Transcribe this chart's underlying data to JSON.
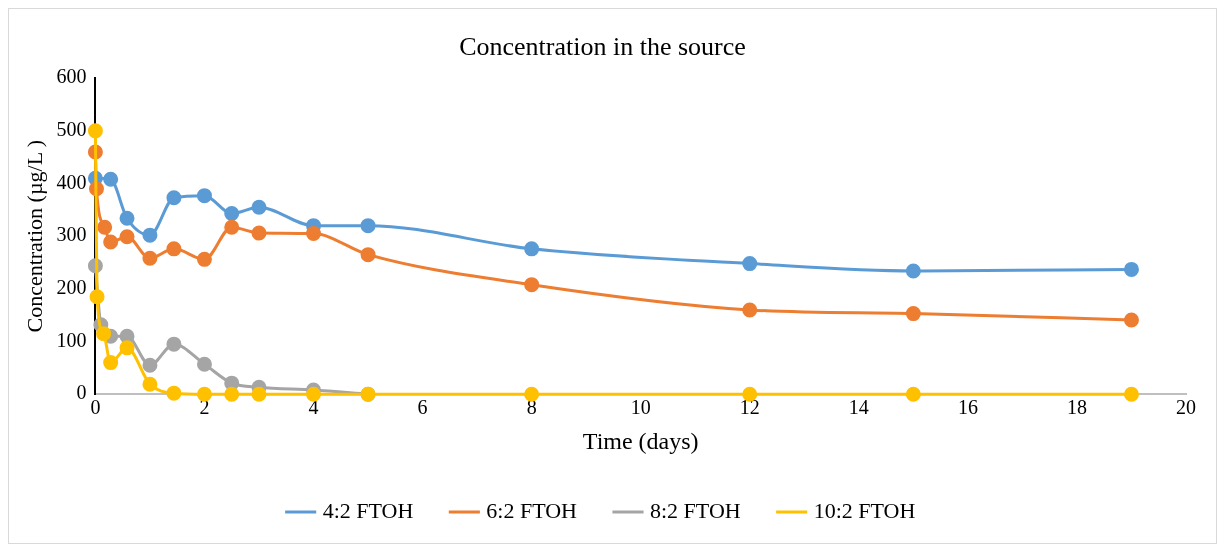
{
  "chart_data": {
    "type": "line",
    "title": "Concentration in the source",
    "xlabel": "Time (days)",
    "ylabel": "Concentration (µg/L )",
    "xlim": [
      0,
      20
    ],
    "xticks": [
      0,
      2,
      4,
      6,
      8,
      10,
      12,
      14,
      16,
      18,
      20
    ],
    "ylim": [
      0,
      600
    ],
    "yticks": [
      0,
      100,
      200,
      300,
      400,
      500,
      600
    ],
    "grid": false,
    "legend": "bottom",
    "marker": "circle",
    "line_style": "solid",
    "series": [
      {
        "name": "4:2 FTOH",
        "color": "#5b9bd5",
        "x": [
          0,
          0.28,
          0.58,
          1,
          1.44,
          2,
          2.5,
          3,
          4,
          5,
          8,
          12,
          15,
          19
        ],
        "values": [
          410,
          408,
          334,
          302,
          373,
          377,
          343,
          355,
          320,
          320,
          276,
          248,
          234,
          237
        ]
      },
      {
        "name": "6:2 FTOH",
        "color": "#ed7d31",
        "x": [
          0,
          0.02,
          0.17,
          0.28,
          0.58,
          1,
          1.44,
          2,
          2.5,
          3,
          4,
          5,
          8,
          12,
          15,
          19
        ],
        "values": [
          460,
          390,
          317,
          289,
          299,
          258,
          276,
          256,
          317,
          306,
          305,
          265,
          208,
          160,
          153,
          141
        ]
      },
      {
        "name": "8:2 FTOH",
        "color": "#a5a5a5",
        "x": [
          0,
          0.1,
          0.28,
          0.58,
          1,
          1.44,
          2,
          2.5,
          3,
          4,
          5
        ],
        "values": [
          244,
          132,
          110,
          110,
          55,
          95,
          57,
          21,
          13,
          8,
          0
        ]
      },
      {
        "name": "10:2 FTOH",
        "color": "#ffc000",
        "x": [
          0,
          0.03,
          0.15,
          0.28,
          0.58,
          1,
          1.44,
          2,
          2.5,
          3,
          4,
          5,
          8,
          12,
          15,
          19
        ],
        "values": [
          500,
          185,
          115,
          60,
          88,
          19,
          2,
          0,
          0,
          0,
          0,
          0,
          0,
          0,
          0,
          0
        ]
      }
    ]
  }
}
